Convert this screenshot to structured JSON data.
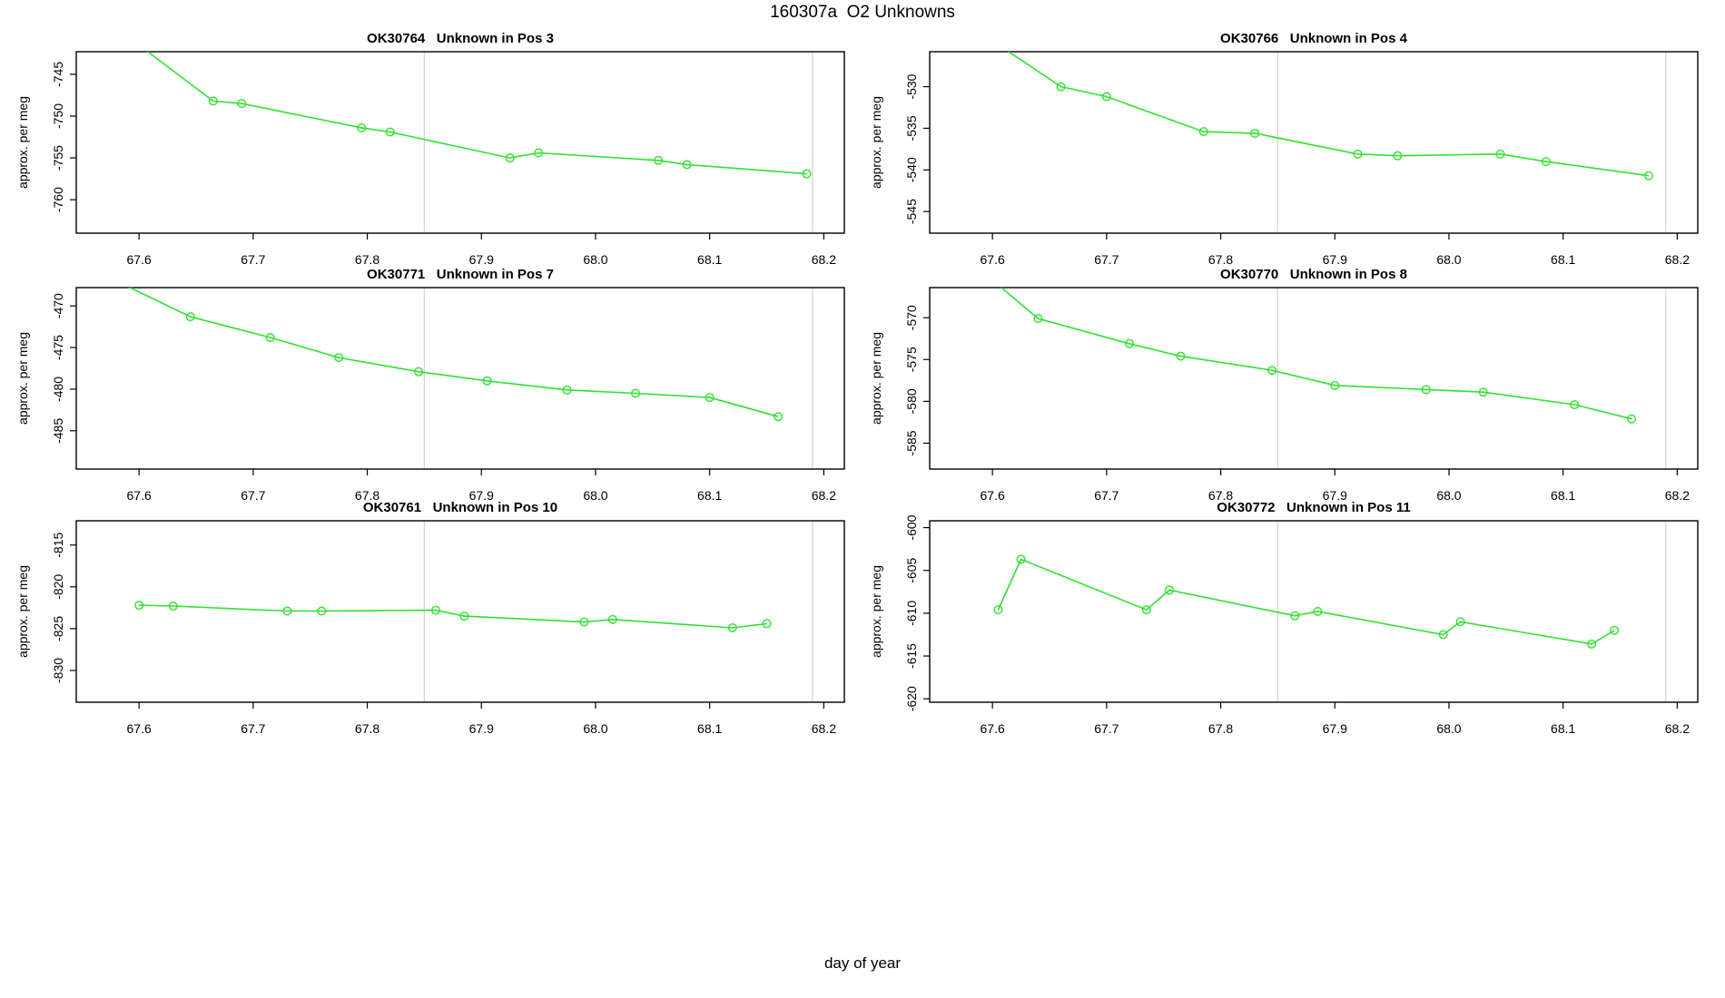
{
  "chart_data": {
    "type": "line",
    "title": "160307a  O2 Unknowns",
    "xlabel": "day of year",
    "x_ticks": [
      67.6,
      67.7,
      67.8,
      67.9,
      68.0,
      68.1,
      68.2
    ],
    "xlim": [
      67.545,
      68.218
    ],
    "ref_lines_x": [
      67.85,
      68.19
    ],
    "grid": false,
    "legend": false,
    "line_color": "#2FE22F",
    "ref_line_color": "#D4D4D4",
    "frame_color": "#000000",
    "subplots": [
      {
        "name": "OK30764",
        "title": "OK30764   Unknown in Pos 3",
        "ylabel": "approx. per meg",
        "ylim": [
          -764.0,
          -742.3
        ],
        "yticks": [
          -745,
          -750,
          -755,
          -760
        ],
        "x": [
          67.6,
          67.665,
          67.69,
          67.795,
          67.82,
          67.925,
          67.95,
          68.055,
          68.08,
          68.185
        ],
        "y": [
          -741.5,
          -748.2,
          -748.5,
          -751.4,
          -751.9,
          -755.0,
          -754.4,
          -755.3,
          -755.8,
          -756.9
        ]
      },
      {
        "name": "OK30766",
        "title": "OK30766   Unknown in Pos 4",
        "ylabel": "approx. per meg",
        "ylim": [
          -547.6,
          -525.8
        ],
        "yticks": [
          -530,
          -535,
          -540,
          -545
        ],
        "x": [
          67.6,
          67.66,
          67.7,
          67.785,
          67.83,
          67.92,
          67.955,
          68.045,
          68.085,
          68.175
        ],
        "y": [
          -524.5,
          -530.0,
          -531.2,
          -535.4,
          -535.6,
          -538.1,
          -538.3,
          -538.1,
          -539.0,
          -540.7
        ]
      },
      {
        "name": "OK30771",
        "title": "OK30771   Unknown in Pos 7",
        "ylabel": "approx. per meg",
        "ylim": [
          -489.6,
          -467.8
        ],
        "yticks": [
          -470,
          -475,
          -480,
          -485
        ],
        "x": [
          67.58,
          67.645,
          67.715,
          67.775,
          67.845,
          67.905,
          67.975,
          68.035,
          68.1,
          68.16
        ],
        "y": [
          -467.0,
          -471.3,
          -473.8,
          -476.2,
          -477.9,
          -479.0,
          -480.1,
          -480.5,
          -481.0,
          -483.3
        ]
      },
      {
        "name": "OK30770",
        "title": "OK30770   Unknown in Pos 8",
        "ylabel": "approx. per meg",
        "ylim": [
          -588.1,
          -566.4
        ],
        "yticks": [
          -570,
          -575,
          -580,
          -585
        ],
        "x": [
          67.6,
          67.64,
          67.72,
          67.765,
          67.845,
          67.9,
          67.98,
          68.03,
          68.11,
          68.16
        ],
        "y": [
          -565.5,
          -570.1,
          -573.1,
          -574.6,
          -576.3,
          -578.1,
          -578.6,
          -578.9,
          -580.4,
          -582.1
        ]
      },
      {
        "name": "OK30761",
        "title": "OK30761   Unknown in Pos 10",
        "ylabel": "approx. per meg",
        "ylim": [
          -833.8,
          -812.1
        ],
        "yticks": [
          -815,
          -820,
          -825,
          -830
        ],
        "x": [
          67.6,
          67.63,
          67.73,
          67.76,
          67.86,
          67.885,
          67.99,
          68.015,
          68.12,
          68.15
        ],
        "y": [
          -822.2,
          -822.3,
          -822.9,
          -822.9,
          -822.8,
          -823.5,
          -824.2,
          -823.9,
          -824.9,
          -824.4
        ]
      },
      {
        "name": "OK30772",
        "title": "OK30772   Unknown in Pos 11",
        "ylabel": "approx. per meg",
        "ylim": [
          -620.4,
          -599.2
        ],
        "yticks": [
          -600,
          -605,
          -610,
          -615,
          -620
        ],
        "x": [
          67.605,
          67.625,
          67.735,
          67.755,
          67.865,
          67.885,
          67.995,
          68.01,
          68.125,
          68.145
        ],
        "y": [
          -609.6,
          -603.7,
          -609.6,
          -607.3,
          -610.3,
          -609.8,
          -612.5,
          -611.0,
          -613.6,
          -612.0
        ]
      }
    ]
  }
}
